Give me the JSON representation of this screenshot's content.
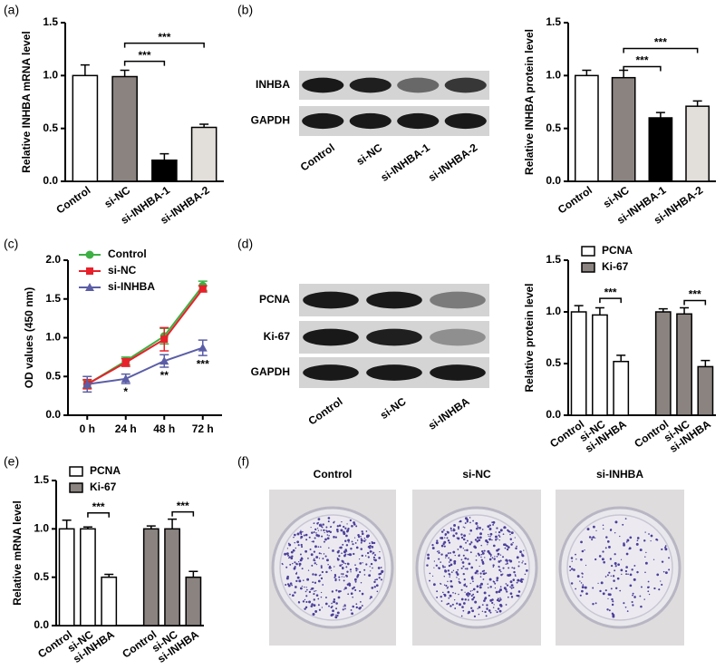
{
  "chart_data": [
    {
      "type": "bar",
      "panel": "(a)",
      "y_label": "Relative INHBA mRNA level",
      "categories": [
        "Control",
        "si-NC",
        "si-INHBA-1",
        "si-INHBA-2"
      ],
      "values": [
        1.0,
        0.99,
        0.2,
        0.51
      ],
      "errors": [
        0.1,
        0.06,
        0.06,
        0.03
      ],
      "colors": [
        "#ffffff",
        "#8a8380",
        "#000000",
        "#e2dfdb"
      ],
      "ylim": [
        0,
        1.5
      ],
      "yticks": [
        {
          "value": 0,
          "label": "0.0"
        },
        0.5,
        {
          "value": 1,
          "label": "1.0"
        },
        1.5
      ],
      "comparisons": [
        {
          "label": "***",
          "between": [
            "si-NC",
            "si-INHBA-1"
          ]
        },
        {
          "label": "***",
          "between": [
            "si-NC",
            "si-INHBA-2"
          ]
        }
      ]
    },
    {
      "type": "bar",
      "y_label": "Relative INHBA protein level",
      "categories": [
        "Control",
        "si-NC",
        "si-INHBA-1",
        "si-INHBA-2"
      ],
      "values": [
        1.0,
        0.98,
        0.6,
        0.71
      ],
      "errors": [
        0.05,
        0.07,
        0.05,
        0.05
      ],
      "colors": [
        "#ffffff",
        "#8a8380",
        "#000000",
        "#e2dfdb"
      ],
      "ylim": [
        0,
        1.5
      ],
      "yticks": [
        {
          "value": 0,
          "label": "0.0"
        },
        0.5,
        {
          "value": 1,
          "label": "1.0"
        },
        1.5
      ],
      "comparisons": [
        {
          "label": "***",
          "between": [
            "si-NC",
            "si-INHBA-1"
          ]
        },
        {
          "label": "***",
          "between": [
            "si-NC",
            "si-INHBA-2"
          ]
        }
      ]
    },
    {
      "type": "line",
      "panel": "(c)",
      "y_label": "OD values (450 nm)",
      "categories": [
        "0 h",
        "24 h",
        "48 h",
        "72 h"
      ],
      "series": [
        {
          "name": "Control",
          "color": "#3cb043",
          "marker": "circle",
          "values": [
            0.4,
            0.7,
            1.02,
            1.67
          ],
          "errors": [
            0.05,
            0.05,
            0.1,
            0.06
          ]
        },
        {
          "name": "si-NC",
          "color": "#e8202a",
          "marker": "square",
          "values": [
            0.4,
            0.68,
            0.98,
            1.63
          ],
          "errors": [
            0.06,
            0.05,
            0.15,
            0.04
          ]
        },
        {
          "name": "si-INHBA",
          "color": "#5b5ea6",
          "marker": "triangle",
          "values": [
            0.4,
            0.47,
            0.7,
            0.87
          ],
          "errors": [
            0.1,
            0.06,
            0.08,
            0.1
          ],
          "annotations": [
            null,
            "*",
            "**",
            "***"
          ]
        }
      ],
      "ylim": [
        0,
        2
      ],
      "yticks": [
        {
          "value": 0,
          "label": "0.0"
        },
        0.5,
        {
          "value": 1,
          "label": "1.0"
        },
        1.5,
        {
          "value": 2,
          "label": "2.0"
        }
      ],
      "legend": "upper left"
    },
    {
      "type": "bar",
      "y_label": "Relative protein level",
      "categories": [
        "Control",
        "si-NC",
        "si-INHBA"
      ],
      "series": [
        {
          "name": "PCNA",
          "color": "#ffffff",
          "values": [
            1.0,
            0.97,
            0.52
          ],
          "errors": [
            0.06,
            0.07,
            0.06
          ],
          "comparisons": [
            {
              "label": "***",
              "between": [
                "si-NC",
                "si-INHBA"
              ]
            }
          ]
        },
        {
          "name": "Ki-67",
          "color": "#8a8380",
          "values": [
            1.0,
            0.98,
            0.47
          ],
          "errors": [
            0.03,
            0.06,
            0.06
          ],
          "comparisons": [
            {
              "label": "***",
              "between": [
                "si-NC",
                "si-INHBA"
              ]
            }
          ]
        }
      ],
      "ylim": [
        0,
        1.5
      ],
      "yticks": [
        {
          "value": 0,
          "label": "0.0"
        },
        0.5,
        {
          "value": 1,
          "label": "1.0"
        },
        1.5
      ],
      "legend": "top"
    },
    {
      "type": "bar",
      "panel": "(e)",
      "y_label": "Relative mRNA level",
      "categories": [
        "Control",
        "si-NC",
        "si-INHBA"
      ],
      "series": [
        {
          "name": "PCNA",
          "color": "#ffffff",
          "values": [
            1.0,
            1.0,
            0.5
          ],
          "errors": [
            0.09,
            0.02,
            0.03
          ],
          "comparisons": [
            {
              "label": "***",
              "between": [
                "si-NC",
                "si-INHBA"
              ]
            }
          ]
        },
        {
          "name": "Ki-67",
          "color": "#8a8380",
          "values": [
            1.0,
            1.0,
            0.5
          ],
          "errors": [
            0.03,
            0.1,
            0.06
          ],
          "comparisons": [
            {
              "label": "***",
              "between": [
                "si-NC",
                "si-INHBA"
              ]
            }
          ]
        }
      ],
      "ylim": [
        0,
        1.5
      ],
      "yticks": [
        {
          "value": 0,
          "label": "0.0"
        },
        0.5,
        {
          "value": 1,
          "label": "1.0"
        },
        1.5
      ],
      "legend": "top"
    }
  ],
  "blots": [
    {
      "panel": "(b)",
      "rows": [
        "INHBA",
        "GAPDH"
      ],
      "lanes": [
        "Control",
        "si-NC",
        "si-INHBA-1",
        "si-INHBA-2"
      ]
    },
    {
      "panel": "(d)",
      "rows": [
        "PCNA",
        "Ki-67",
        "GAPDH"
      ],
      "lanes": [
        "Control",
        "si-NC",
        "si-INHBA"
      ]
    }
  ],
  "colony_assay": {
    "panel": "(f)",
    "labels": [
      "Control",
      "si-NC",
      "si-INHBA"
    ]
  }
}
